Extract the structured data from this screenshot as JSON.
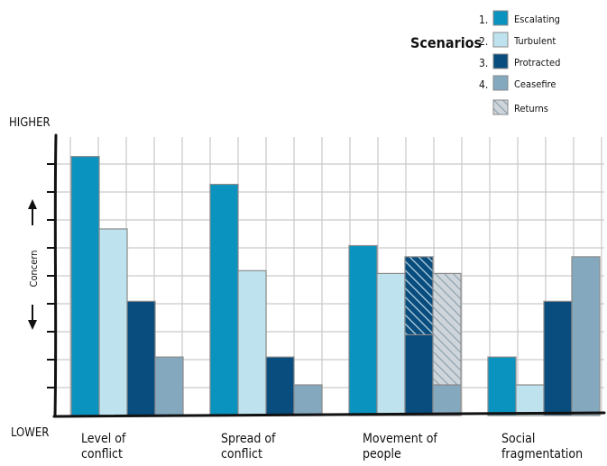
{
  "chart_data": {
    "type": "bar",
    "ylabel": "Concern",
    "y_high_label": "HIGHER",
    "y_low_label": "LOWER",
    "ylim": [
      0,
      10
    ],
    "grid": true,
    "legend": {
      "title": "Scenarios",
      "placement": "top-right",
      "entries": [
        {
          "number": "1.",
          "label": "Escalating"
        },
        {
          "number": "2.",
          "label": "Turbulent"
        },
        {
          "number": "3.",
          "label": "Protracted"
        },
        {
          "number": "4.",
          "label": "Ceasefire"
        },
        {
          "number": "",
          "label": "Returns"
        }
      ]
    },
    "categories": [
      [
        "Level of",
        "conflict"
      ],
      [
        "Spread of",
        "conflict"
      ],
      [
        "Movement of",
        "people"
      ],
      [
        "Social",
        "fragmentation"
      ]
    ],
    "series": [
      {
        "name": "Escalating",
        "color": "#0a93bf",
        "values": [
          9.3,
          8.3,
          6.1,
          2.1
        ]
      },
      {
        "name": "Turbulent",
        "color": "#bfe3ee",
        "values": [
          6.7,
          5.2,
          5.1,
          1.1
        ]
      },
      {
        "name": "Protracted",
        "color": "#084d7d",
        "values": [
          4.1,
          2.1,
          2.9,
          4.1
        ]
      },
      {
        "name": "Ceasefire",
        "color": "#84a9bf",
        "values": [
          2.1,
          1.1,
          1.1,
          5.7
        ]
      }
    ],
    "returns": {
      "label": "Returns",
      "category_index": 2,
      "increments": [
        0,
        0,
        2.8,
        4.0
      ]
    }
  }
}
